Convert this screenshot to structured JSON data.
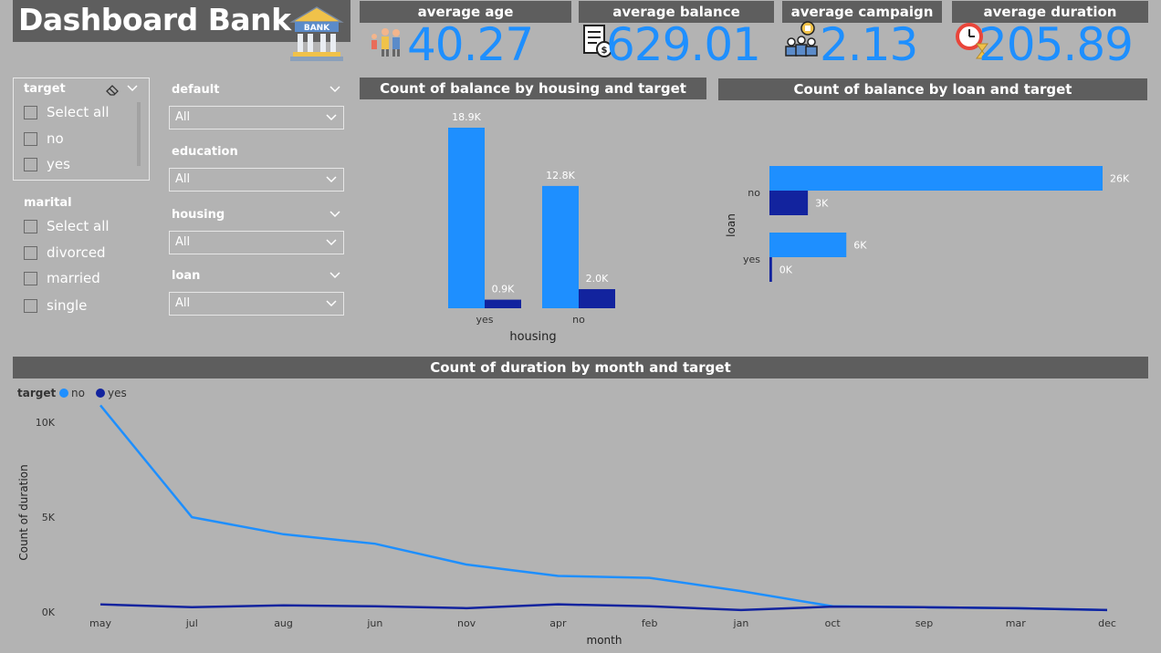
{
  "header": {
    "title": "Dashboard Bank",
    "bank_icon_label": "BANK"
  },
  "kpis": [
    {
      "label": "average age",
      "value": "40.27",
      "icon": "people-icon"
    },
    {
      "label": "average balance",
      "value": "629.01",
      "icon": "document-money-icon"
    },
    {
      "label": "average campaign",
      "value": "2.13",
      "icon": "team-trophy-icon"
    },
    {
      "label": "average duration",
      "value": "205.89",
      "icon": "clock-hourglass-icon"
    }
  ],
  "slicers": {
    "target": {
      "title": "target",
      "options": [
        "Select all",
        "no",
        "yes"
      ]
    },
    "marital": {
      "title": "marital",
      "options": [
        "Select all",
        "divorced",
        "married",
        "single"
      ]
    },
    "dropdowns": [
      {
        "label": "default",
        "value": "All"
      },
      {
        "label": "education",
        "value": "All"
      },
      {
        "label": "housing",
        "value": "All"
      },
      {
        "label": "loan",
        "value": "All"
      }
    ]
  },
  "colors": {
    "no": "#1e8fff",
    "yes": "#12239e",
    "header_bg": "#5e5e5e",
    "page_bg": "#b3b3b3"
  },
  "chart_data": [
    {
      "type": "bar",
      "title": "Count of balance by housing and target",
      "xlabel": "housing",
      "categories": [
        "yes",
        "no"
      ],
      "series": [
        {
          "name": "no",
          "values": [
            18.9,
            12.8
          ],
          "labels": [
            "18.9K",
            "12.8K"
          ]
        },
        {
          "name": "yes",
          "values": [
            0.9,
            2.0
          ],
          "labels": [
            "0.9K",
            "2.0K"
          ]
        }
      ],
      "ylim": [
        0,
        18.9
      ]
    },
    {
      "type": "bar",
      "orientation": "horizontal",
      "title": "Count of balance by loan and target",
      "ylabel": "loan",
      "categories": [
        "no",
        "yes"
      ],
      "series": [
        {
          "name": "no",
          "values": [
            26,
            6
          ],
          "labels": [
            "26K",
            "6K"
          ]
        },
        {
          "name": "yes",
          "values": [
            3,
            0.2
          ],
          "labels": [
            "3K",
            "0K"
          ]
        }
      ],
      "xlim": [
        0,
        26
      ]
    },
    {
      "type": "line",
      "title": "Count of duration by month and target",
      "xlabel": "month",
      "ylabel": "Count of duration",
      "legend_title": "target",
      "legend_position": "top-left",
      "x": [
        "may",
        "jul",
        "aug",
        "jun",
        "nov",
        "apr",
        "feb",
        "jan",
        "oct",
        "sep",
        "mar",
        "dec"
      ],
      "yticks": [
        "0K",
        "5K",
        "10K"
      ],
      "ylim": [
        0,
        11500
      ],
      "series": [
        {
          "name": "no",
          "values": [
            10900,
            5000,
            4100,
            3600,
            2500,
            1900,
            1800,
            1100,
            300,
            250,
            200,
            100
          ]
        },
        {
          "name": "yes",
          "values": [
            400,
            250,
            350,
            300,
            200,
            400,
            300,
            100,
            280,
            250,
            200,
            100
          ]
        }
      ]
    }
  ]
}
